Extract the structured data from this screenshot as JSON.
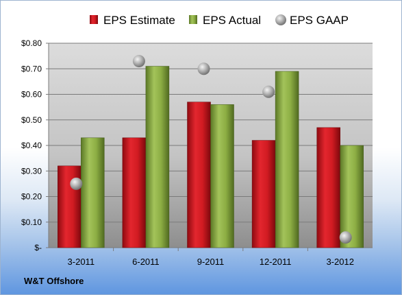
{
  "chart_data": {
    "type": "bar",
    "categories": [
      "3-2011",
      "6-2011",
      "9-2011",
      "12-2011",
      "3-2012"
    ],
    "series": [
      {
        "name": "EPS Estimate",
        "kind": "bar",
        "color": "#c8141c",
        "values": [
          0.32,
          0.43,
          0.57,
          0.42,
          0.47
        ]
      },
      {
        "name": "EPS Actual",
        "kind": "bar",
        "color": "#86a83c",
        "values": [
          0.43,
          0.71,
          0.56,
          0.69,
          0.4
        ]
      },
      {
        "name": "EPS GAAP",
        "kind": "marker",
        "color": "#b4b4b4",
        "values": [
          0.25,
          0.73,
          0.7,
          0.61,
          0.04
        ]
      }
    ],
    "ylim": [
      0,
      0.8
    ],
    "yticks": [
      0,
      0.1,
      0.2,
      0.3,
      0.4,
      0.5,
      0.6,
      0.7,
      0.8
    ],
    "ytick_labels": [
      "$-",
      "$0.10",
      "$0.20",
      "$0.30",
      "$0.40",
      "$0.50",
      "$0.60",
      "$0.70",
      "$0.80"
    ],
    "grid": true,
    "legend": "top"
  },
  "footer": {
    "company": "W&T Offshore"
  }
}
